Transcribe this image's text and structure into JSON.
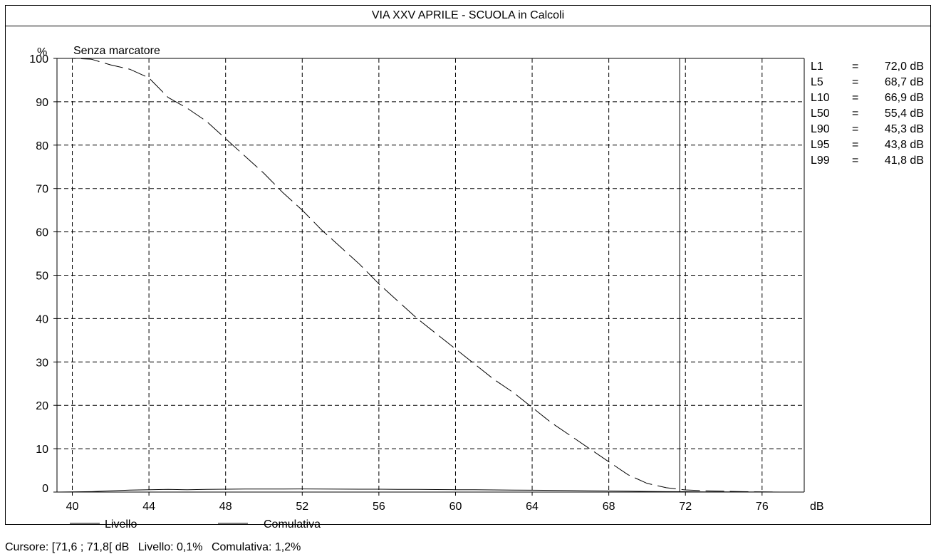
{
  "window": {
    "title": "VIA XXV APRILE - SCUOLA in Calcoli"
  },
  "chart_data": {
    "type": "line",
    "title": "VIA XXV APRILE - SCUOLA in Calcoli",
    "subtitle": "Senza marcatore",
    "ylabel": "%",
    "xlabel": "dB",
    "xlim": [
      39.2,
      78.2
    ],
    "ylim": [
      0,
      100
    ],
    "x_ticks": [
      40,
      44,
      48,
      52,
      56,
      60,
      64,
      68,
      72,
      76
    ],
    "y_ticks": [
      0,
      10,
      20,
      30,
      40,
      50,
      60,
      70,
      80,
      90,
      100
    ],
    "grid": true,
    "grid_color": "#000000",
    "grid_style": "dashed",
    "cursor_x": 71.7,
    "series": [
      {
        "name": "Livello",
        "style": "solid",
        "color": "#000000",
        "x": [
          39.2,
          40,
          41,
          42,
          43,
          44,
          45,
          46,
          47,
          48,
          49,
          50,
          51,
          52,
          53,
          54,
          55,
          56,
          57,
          58,
          59,
          60,
          61,
          62,
          63,
          64,
          65,
          66,
          67,
          68,
          69,
          70,
          71,
          72,
          73,
          74,
          75,
          76,
          77,
          78.2
        ],
        "values": [
          0,
          0.05,
          0.1,
          0.3,
          0.45,
          0.55,
          0.6,
          0.55,
          0.6,
          0.65,
          0.7,
          0.7,
          0.7,
          0.72,
          0.7,
          0.68,
          0.66,
          0.65,
          0.62,
          0.6,
          0.58,
          0.55,
          0.52,
          0.5,
          0.45,
          0.42,
          0.4,
          0.35,
          0.3,
          0.25,
          0.2,
          0.15,
          0.1,
          0.08,
          0.05,
          0.03,
          0.02,
          0.01,
          0,
          0
        ]
      },
      {
        "name": "Comulativa",
        "style": "dashed",
        "color": "#000000",
        "x": [
          39.2,
          40,
          41,
          42,
          43,
          44,
          45,
          46,
          47,
          48,
          49,
          50,
          51,
          52,
          53,
          54,
          55,
          56,
          57,
          58,
          59,
          60,
          61,
          62,
          63,
          64,
          65,
          66,
          67,
          68,
          69,
          70,
          71,
          72,
          73,
          74,
          75,
          76,
          77,
          78.2
        ],
        "values": [
          100,
          100,
          99.8,
          98.5,
          97.5,
          95.5,
          91,
          88.5,
          85.5,
          81.5,
          77.5,
          73.5,
          69,
          65,
          60.5,
          56.5,
          52.5,
          48,
          44,
          40,
          36.5,
          33,
          29.5,
          26,
          23,
          19.5,
          16,
          13,
          10,
          7,
          4,
          2,
          1,
          0.5,
          0.3,
          0.2,
          0.1,
          0.05,
          0,
          0
        ]
      }
    ],
    "statistics": [
      {
        "label": "L1",
        "eq": "=",
        "value": "72,0 dB"
      },
      {
        "label": "L5",
        "eq": "=",
        "value": "68,7 dB"
      },
      {
        "label": "L10",
        "eq": "=",
        "value": "66,9 dB"
      },
      {
        "label": "L50",
        "eq": "=",
        "value": "55,4 dB"
      },
      {
        "label": "L90",
        "eq": "=",
        "value": "45,3 dB"
      },
      {
        "label": "L95",
        "eq": "=",
        "value": "43,8 dB"
      },
      {
        "label": "L99",
        "eq": "=",
        "value": "41,8 dB"
      }
    ],
    "legend": {
      "placement": "bottom-left",
      "items": [
        "Livello",
        "Comulativa"
      ]
    }
  },
  "status": {
    "cursor_label": "Cursore: [71,6 ; 71,8[ dB",
    "livello_label": "Livello: 0,1%",
    "comulativa_label": "Comulativa: 1,2%"
  }
}
